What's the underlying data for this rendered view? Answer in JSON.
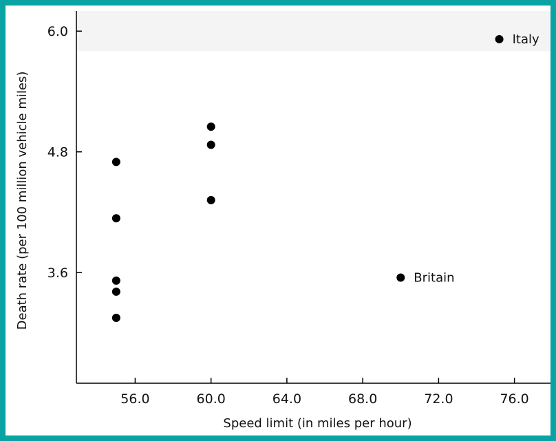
{
  "chart_data": {
    "type": "scatter",
    "xlabel": "Speed limit (in miles per hour)",
    "ylabel": "Death rate (per 100 million vehicle miles)",
    "x_ticks": [
      56.0,
      60.0,
      64.0,
      68.0,
      72.0,
      76.0
    ],
    "x_tick_labels": [
      "56.0",
      "60.0",
      "64.0",
      "68.0",
      "72.0",
      "76.0"
    ],
    "y_ticks": [
      3.6,
      4.8,
      6.0
    ],
    "y_tick_labels": [
      "3.6",
      "4.8",
      "6.0"
    ],
    "xlim": [
      52.9,
      77.9
    ],
    "ylim": [
      2.5,
      6.2
    ],
    "grid": false,
    "highlight_band": {
      "y_from": 5.8,
      "y_to": 6.2,
      "color": "#f4f4f4"
    },
    "points": [
      {
        "x": 55,
        "y": 4.7
      },
      {
        "x": 55,
        "y": 4.14
      },
      {
        "x": 55,
        "y": 3.52
      },
      {
        "x": 55,
        "y": 3.41
      },
      {
        "x": 55,
        "y": 3.15
      },
      {
        "x": 60,
        "y": 5.05
      },
      {
        "x": 60,
        "y": 4.87
      },
      {
        "x": 60,
        "y": 4.32
      },
      {
        "x": 70,
        "y": 3.55,
        "label": "Britain"
      },
      {
        "x": 75.2,
        "y": 5.92,
        "label": "Italy"
      }
    ],
    "colors": {
      "marker": "#000000",
      "axis": "#000000",
      "frame": "#0aa3a3"
    }
  }
}
